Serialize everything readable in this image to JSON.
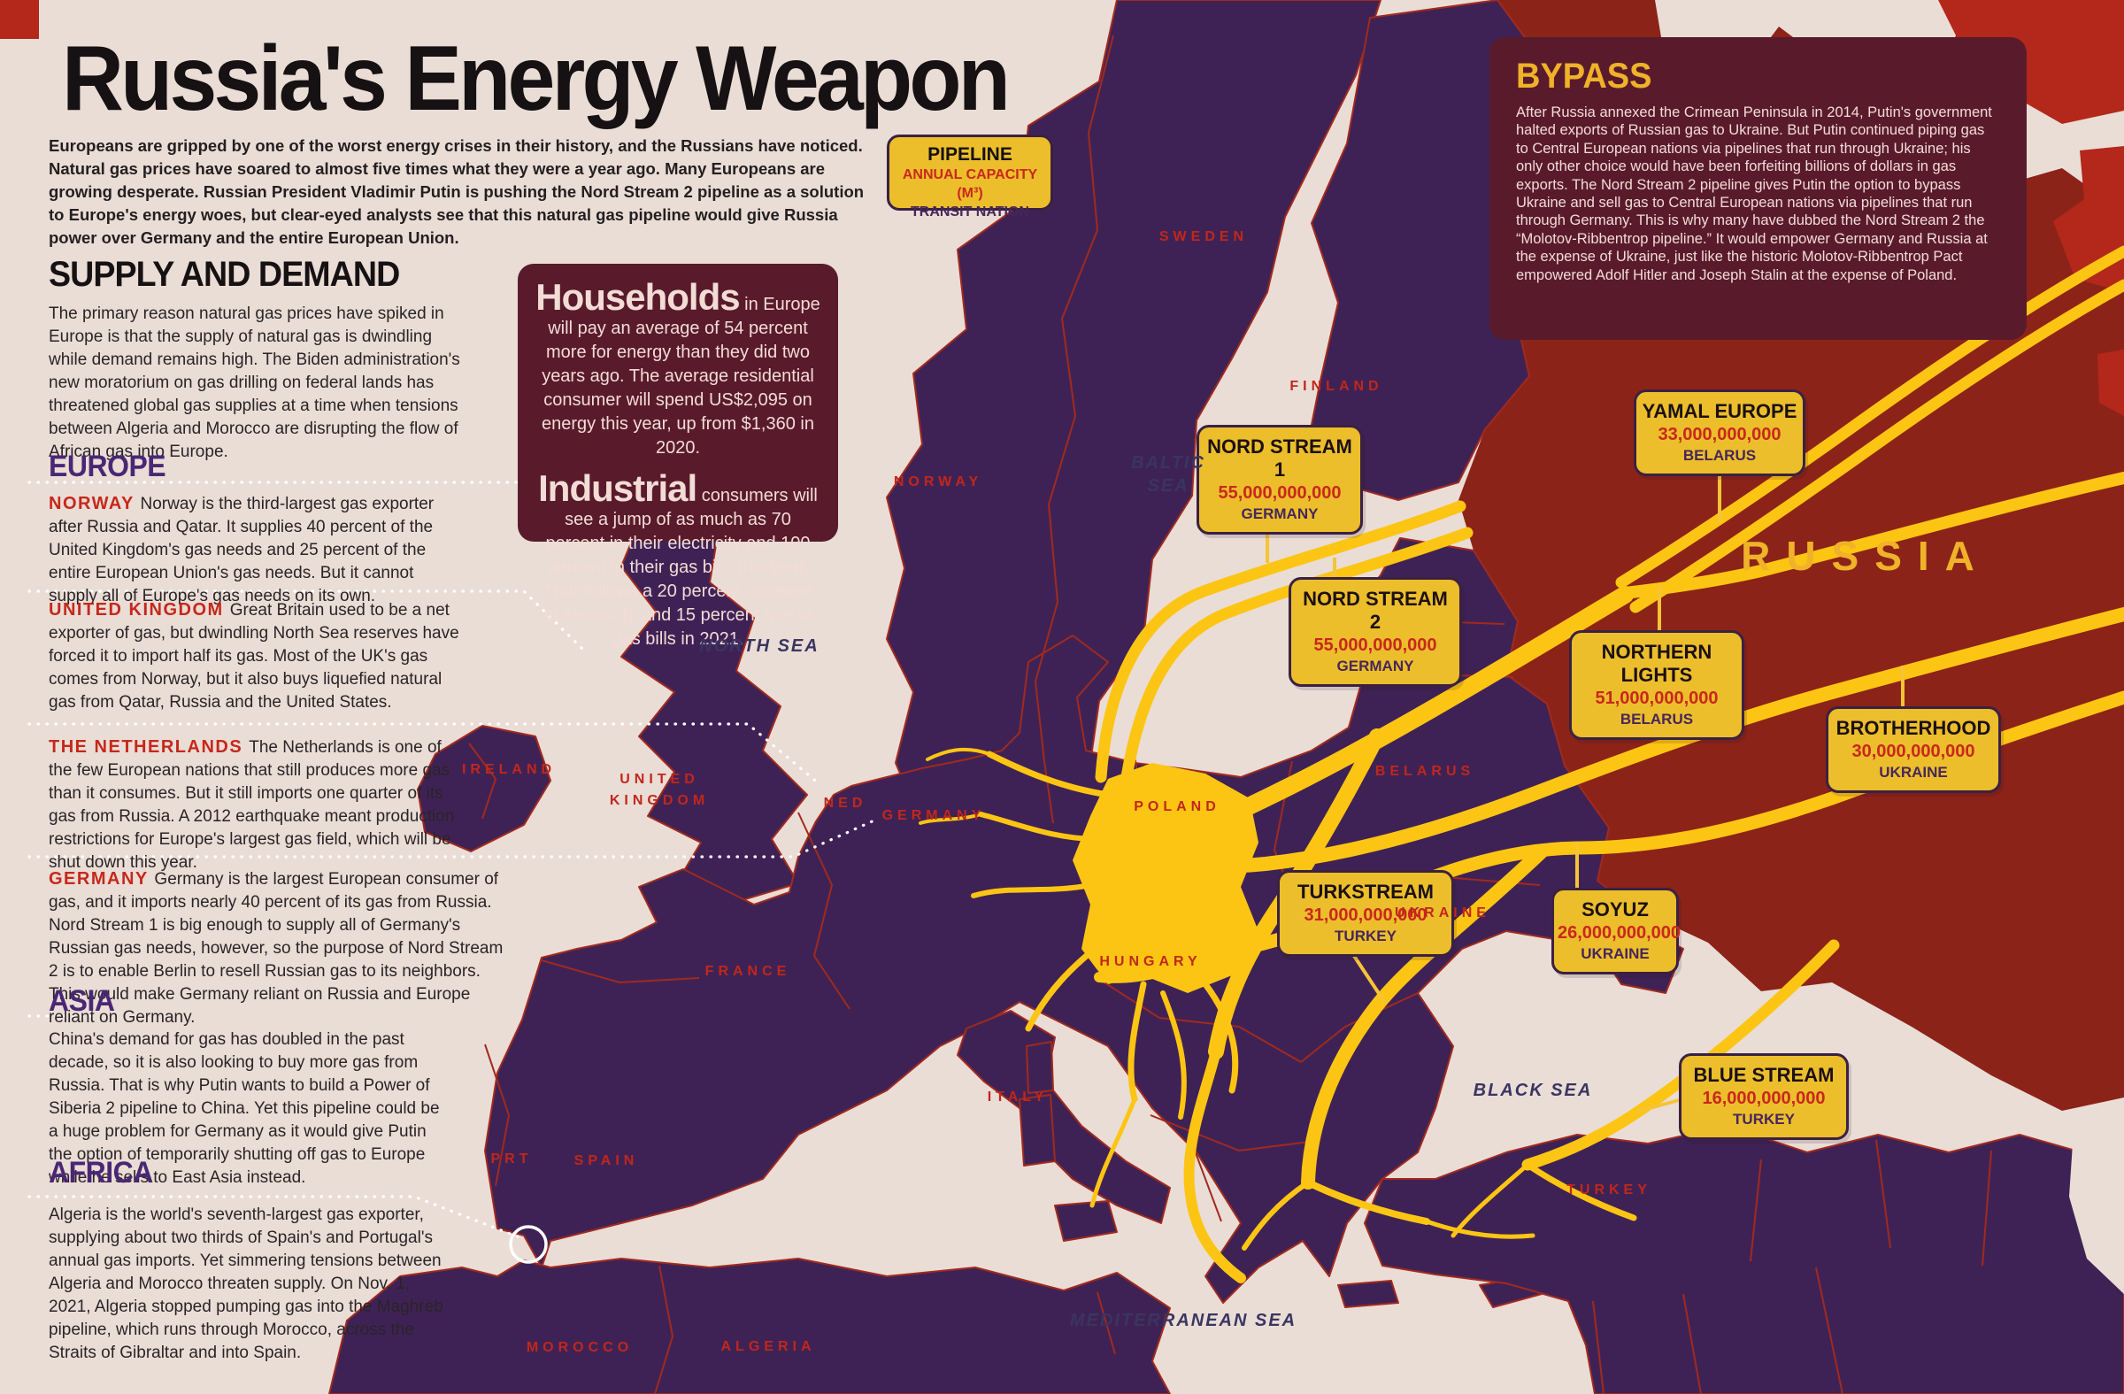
{
  "page": {
    "title": "Russia's Energy Weapon",
    "intro": "Europeans are gripped by one of the worst energy crises in their history, and the Russians have noticed. Natural gas prices have soared to almost five times what they were a year ago. Many Europeans are growing desperate. Russian President Vladimir Putin is pushing the Nord Stream 2 pipeline as a solution to Europe's energy woes, but clear-eyed analysts see that this natural gas pipeline would give Russia power over Germany and the entire European Union."
  },
  "supply": {
    "heading": "SUPPLY AND DEMAND",
    "body": "The primary reason natural gas prices have spiked in Europe is that the supply of natural gas is dwindling while demand remains high. The Biden administration's new moratorium on gas drilling on federal lands has threatened global gas supplies at a time when tensions between Algeria and Morocco are disrupting the flow of African gas into Europe."
  },
  "europe": {
    "heading": "EUROPE",
    "items": [
      {
        "label": "NORWAY",
        "text": "Norway is the third-largest gas exporter after Russia and Qatar. It supplies 40 percent of the United Kingdom's gas needs and 25 percent of the entire European Union's gas needs. But it cannot supply all of Europe's gas needs on its own."
      },
      {
        "label": "UNITED KINGDOM",
        "text": "Great Britain used to be a net exporter of gas, but dwindling North Sea reserves have forced it to import half its gas. Most of the UK's gas comes from Norway, but it also buys liquefied natural gas from Qatar, Russia and the United States."
      },
      {
        "label": "THE NETHERLANDS",
        "text": "The Netherlands is one of the few European nations that still produces more gas than it consumes. But it still imports one quarter of its gas from Russia. A 2012 earthquake meant production restrictions for Europe's largest gas field, which will be shut down this year."
      },
      {
        "label": "GERMANY",
        "text": "Germany is the largest European consumer of gas, and it imports nearly 40 percent of its gas from Russia. Nord Stream 1 is big enough to supply all of Germany's Russian gas needs, however, so the purpose of Nord Stream 2 is to enable Berlin to resell Russian gas to its neighbors. This would make Germany reliant on Russia and Europe reliant on Germany."
      }
    ]
  },
  "asia": {
    "heading": "ASIA",
    "text": "China's demand for gas has doubled in the past decade, so it is also looking to buy more gas from Russia. That is why Putin wants to build a Power of Siberia 2 pipeline to China. Yet this pipeline could be a huge problem for Germany as it would give Putin the option of temporarily shutting off gas to Europe while he sells to East Asia instead."
  },
  "africa": {
    "heading": "AFRICA",
    "text": "Algeria is the world's seventh-largest gas exporter, supplying about two thirds of Spain's and Portugal's annual gas imports. Yet simmering tensions between Algeria and Morocco threaten supply. On Nov. 1, 2021, Algeria stopped pumping gas into the Maghreb pipeline, which runs through Morocco, across the Straits of Gibraltar and into Spain."
  },
  "stats": {
    "households_label": "Households",
    "households_text": " in Europe will pay an average of 54 percent more for energy than they did two years ago. The average residential consumer will spend US$2,095 on energy this year, up from $1,360 in 2020.",
    "industrial_label": "Industrial",
    "industrial_text": " consumers will see a jump of as much as 70 percent in their electricity and 100 percent in their gas bills this year. That follows a 20 percent increase in electricity and 15 percent rise in gas bills in 2021."
  },
  "bypass": {
    "heading": "BYPASS",
    "body": "After Russia annexed the Crimean Peninsula in 2014, Putin's government halted exports of Russian gas to Ukraine. But Putin continued piping gas to Central European nations via pipelines that run through Ukraine; his only other choice would have been forfeiting billions of dollars in gas exports. The Nord Stream 2 pipeline gives Putin the option to bypass Ukraine and sell gas to Central European nations via pipelines that run through Germany. This is why many have dubbed the Nord Stream 2 the “Molotov-Ribbentrop pipeline.” It would empower Germany and Russia at the expense of Ukraine, just like the historic Molotov-Ribbentrop Pact empowered Adolf Hitler and Joseph Stalin at the expense of Poland."
  },
  "legend": {
    "line1": "PIPELINE",
    "line2": "ANNUAL CAPACITY (M³)",
    "line3": "TRANSIT NATION"
  },
  "pipelines": [
    {
      "name": "NORD STREAM 1",
      "capacity": "55,000,000,000",
      "nation": "GERMANY"
    },
    {
      "name": "NORD STREAM 2",
      "capacity": "55,000,000,000",
      "nation": "GERMANY"
    },
    {
      "name": "YAMAL EUROPE",
      "capacity": "33,000,000,000",
      "nation": "BELARUS"
    },
    {
      "name": "NORTHERN LIGHTS",
      "capacity": "51,000,000,000",
      "nation": "BELARUS"
    },
    {
      "name": "BROTHERHOOD",
      "capacity": "30,000,000,000",
      "nation": "UKRAINE"
    },
    {
      "name": "SOYUZ",
      "capacity": "26,000,000,000",
      "nation": "UKRAINE"
    },
    {
      "name": "TURKSTREAM",
      "capacity": "31,000,000,000",
      "nation": "TURKEY"
    },
    {
      "name": "BLUE STREAM",
      "capacity": "16,000,000,000",
      "nation": "TURKEY"
    }
  ],
  "map": {
    "countries": [
      "SWEDEN",
      "FINLAND",
      "NORWAY",
      "IRELAND",
      "UNITED\nKINGDOM",
      "NED",
      "GERMANY",
      "POLAND",
      "BELARUS",
      "UKRAINE",
      "HUNGARY",
      "FRANCE",
      "ITALY",
      "PRT",
      "SPAIN",
      "MOROCCO",
      "ALGERIA",
      "TURKEY"
    ],
    "seas": [
      "BALTIC\nSEA",
      "NORTH SEA",
      "BLACK SEA",
      "MEDITERRANEAN SEA"
    ],
    "russia": "RUSSIA"
  },
  "colors": {
    "background": "#EADDD6",
    "land_purple": "#3F2255",
    "russia_red": "#8C2318",
    "arctic_red": "#B3281B",
    "pipeline_yellow": "#FDC513",
    "box_yellow": "#ECBE2B",
    "dark_box": "#591B2C",
    "accent_red": "#C5281B",
    "cream_text": "#F3DCD6",
    "heading_purple": "#4A2774",
    "bypass_yellow": "#EFB229"
  }
}
